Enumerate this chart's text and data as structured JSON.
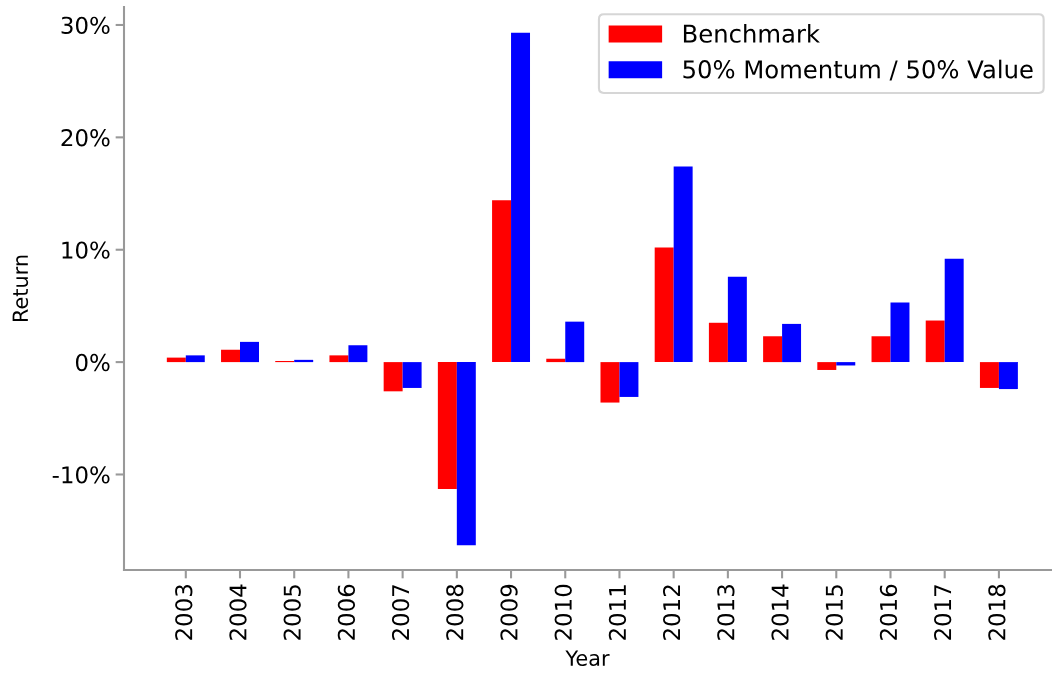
{
  "chart_data": {
    "type": "bar",
    "xlabel": "Year",
    "ylabel": "Return",
    "categories": [
      "2003",
      "2004",
      "2005",
      "2006",
      "2007",
      "2008",
      "2009",
      "2010",
      "2011",
      "2012",
      "2013",
      "2014",
      "2015",
      "2016",
      "2017",
      "2018"
    ],
    "series": [
      {
        "name": "Benchmark",
        "color": "#ff0000",
        "values": [
          0.4,
          1.1,
          0.1,
          0.6,
          -2.6,
          -11.3,
          14.4,
          0.3,
          -3.6,
          10.2,
          3.5,
          2.3,
          -0.7,
          2.3,
          3.7,
          -2.3
        ]
      },
      {
        "name": "50% Momentum / 50% Value",
        "color": "#0000ff",
        "values": [
          0.6,
          1.8,
          0.2,
          1.5,
          -2.3,
          -16.3,
          29.3,
          3.6,
          -3.1,
          17.4,
          7.6,
          3.4,
          -0.3,
          5.3,
          9.2,
          -2.4
        ]
      }
    ],
    "ylim": [
      -18.5,
      31.6
    ],
    "yticks": [
      {
        "value": -10,
        "label": "-10%"
      },
      {
        "value": 0,
        "label": "0%"
      },
      {
        "value": 10,
        "label": "10%"
      },
      {
        "value": 20,
        "label": "20%"
      },
      {
        "value": 30,
        "label": "30%"
      }
    ],
    "grid": false,
    "legend": "top right"
  }
}
